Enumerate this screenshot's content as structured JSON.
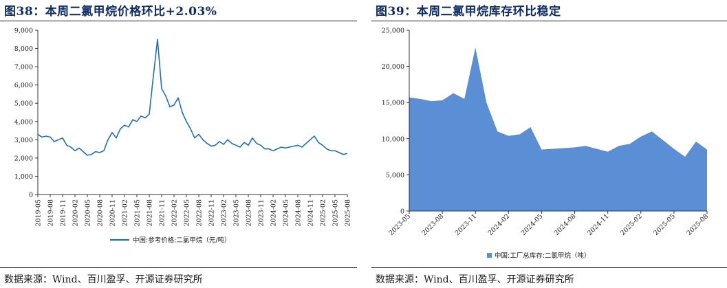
{
  "left": {
    "title": "图38：本周二氯甲烷价格环比+2.03%",
    "source": "数据来源：Wind、百川盈孚、开源证券研究所"
  },
  "right": {
    "title": "图39：本周二氯甲烷库存环比稳定",
    "source": "数据来源：Wind、百川盈孚、开源证券研究所"
  },
  "chart_data": [
    {
      "type": "line",
      "title": "",
      "xlabel": "",
      "ylabel": "",
      "ylim": [
        0,
        9000
      ],
      "y_ticks": [
        "0",
        "1,000",
        "2,000",
        "3,000",
        "4,000",
        "5,000",
        "6,000",
        "7,000",
        "8,000",
        "9,000"
      ],
      "x_ticks": [
        "2019-05",
        "2019-08",
        "2019-11",
        "2020-02",
        "2020-05",
        "2020-08",
        "2020-11",
        "2021-02",
        "2021-05",
        "2021-08",
        "2021-11",
        "2022-02",
        "2022-05",
        "2022-08",
        "2022-11",
        "2023-02",
        "2023-05",
        "2023-08",
        "2023-11",
        "2024-02",
        "2024-05",
        "2024-08",
        "2024-11",
        "2025-02",
        "2025-05",
        "2025-08"
      ],
      "grid": false,
      "legend_position": "bottom",
      "color": "#1f6fb8",
      "series": [
        {
          "name": "中国:参考价格:二氯甲烷（元/吨）",
          "x": [
            "2019-05",
            "2019-06",
            "2019-07",
            "2019-08",
            "2019-09",
            "2019-10",
            "2019-11",
            "2019-12",
            "2020-01",
            "2020-02",
            "2020-03",
            "2020-04",
            "2020-05",
            "2020-06",
            "2020-07",
            "2020-08",
            "2020-09",
            "2020-10",
            "2020-11",
            "2020-12",
            "2021-01",
            "2021-02",
            "2021-03",
            "2021-04",
            "2021-05",
            "2021-06",
            "2021-07",
            "2021-08",
            "2021-09",
            "2021-10",
            "2021-11",
            "2021-12",
            "2022-01",
            "2022-02",
            "2022-03",
            "2022-04",
            "2022-05",
            "2022-06",
            "2022-07",
            "2022-08",
            "2022-09",
            "2022-10",
            "2022-11",
            "2022-12",
            "2023-01",
            "2023-02",
            "2023-03",
            "2023-04",
            "2023-05",
            "2023-06",
            "2023-07",
            "2023-08",
            "2023-09",
            "2023-10",
            "2023-11",
            "2023-12",
            "2024-01",
            "2024-02",
            "2024-03",
            "2024-04",
            "2024-05",
            "2024-06",
            "2024-07",
            "2024-08",
            "2024-09",
            "2024-10",
            "2024-11",
            "2024-12",
            "2025-01",
            "2025-02",
            "2025-03",
            "2025-04",
            "2025-05",
            "2025-06",
            "2025-07",
            "2025-08"
          ],
          "values": [
            3300,
            3150,
            3200,
            3150,
            2900,
            3000,
            3100,
            2700,
            2600,
            2400,
            2550,
            2350,
            2150,
            2200,
            2350,
            2300,
            2400,
            3000,
            3400,
            3100,
            3600,
            3800,
            3700,
            4100,
            4000,
            4300,
            4200,
            4400,
            6500,
            8500,
            5800,
            5400,
            4800,
            4900,
            5300,
            4500,
            4000,
            3600,
            3100,
            3300,
            3000,
            2800,
            2650,
            2700,
            2900,
            2750,
            3000,
            2800,
            2700,
            2600,
            2850,
            2700,
            3100,
            2800,
            2700,
            2500,
            2500,
            2400,
            2500,
            2600,
            2550,
            2600,
            2650,
            2700,
            2600,
            2800,
            3000,
            3200,
            2850,
            2700,
            2500,
            2400,
            2400,
            2300,
            2200,
            2250
          ]
        }
      ]
    },
    {
      "type": "area",
      "title": "",
      "xlabel": "",
      "ylabel": "",
      "ylim": [
        0,
        25000
      ],
      "y_ticks": [
        "0",
        "5,000",
        "10,000",
        "15,000",
        "20,000",
        "25,000"
      ],
      "x_ticks": [
        "2023-05",
        "2023-08",
        "2023-11",
        "2024-02",
        "2024-05",
        "2024-08",
        "2024-11",
        "2025-02",
        "2025-05",
        "2025-08"
      ],
      "grid": false,
      "legend_position": "bottom",
      "color": "#5b8fd5",
      "series": [
        {
          "name": "中国:工厂总库存:二氯甲烷（吨）",
          "x": [
            "2023-05",
            "2023-06",
            "2023-07",
            "2023-08",
            "2023-09",
            "2023-10",
            "2023-11",
            "2023-12",
            "2024-01",
            "2024-02",
            "2024-03",
            "2024-04",
            "2024-05",
            "2024-06",
            "2024-07",
            "2024-08",
            "2024-09",
            "2024-10",
            "2024-11",
            "2024-12",
            "2025-01",
            "2025-02",
            "2025-03",
            "2025-04",
            "2025-05",
            "2025-06",
            "2025-07",
            "2025-08"
          ],
          "values": [
            15700,
            15500,
            15200,
            15300,
            16300,
            15500,
            22600,
            15000,
            11000,
            10400,
            10600,
            11600,
            8500,
            8600,
            8700,
            8800,
            9000,
            8600,
            8200,
            9000,
            9300,
            10300,
            11000,
            9800,
            8600,
            7500,
            9600,
            8500
          ]
        }
      ]
    }
  ]
}
